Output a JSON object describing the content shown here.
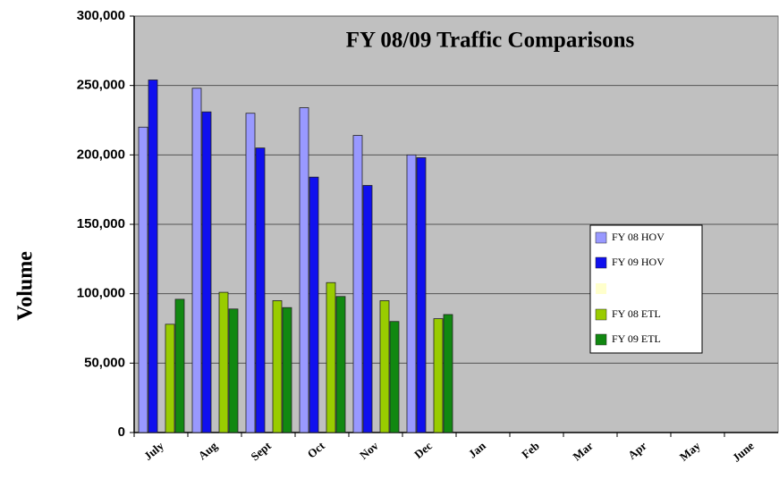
{
  "chart_data": {
    "type": "bar",
    "title": "FY 08/09 Traffic Comparisons",
    "y_label": "Volume",
    "categories": [
      "July",
      "Aug",
      "Sept",
      "Oct",
      "Nov",
      "Dec",
      "Jan",
      "Feb",
      "Mar",
      "Apr",
      "May",
      "June"
    ],
    "series": [
      {
        "name": "FY 08 HOV",
        "color": "#9999ff",
        "values": [
          220000,
          248000,
          230000,
          234000,
          214000,
          200000,
          null,
          null,
          null,
          null,
          null,
          null
        ]
      },
      {
        "name": "FY 09 HOV",
        "color": "#1010ee",
        "values": [
          254000,
          231000,
          205000,
          184000,
          178000,
          198000,
          null,
          null,
          null,
          null,
          null,
          null
        ]
      },
      {
        "name": "FY 08 ETL",
        "color": "#99cc00",
        "values": [
          78000,
          101000,
          95000,
          108000,
          95000,
          82000,
          null,
          null,
          null,
          null,
          null,
          null
        ]
      },
      {
        "name": "FY 09 ETL",
        "color": "#118811",
        "values": [
          96000,
          89000,
          90000,
          98000,
          80000,
          85000,
          null,
          null,
          null,
          null,
          null,
          null
        ]
      }
    ],
    "ylim": [
      0,
      300000
    ],
    "yticks": [
      {
        "value": 0,
        "label": "0"
      },
      {
        "value": 50000,
        "label": "50,000"
      },
      {
        "value": 100000,
        "label": "100,000"
      },
      {
        "value": 150000,
        "label": "150,000"
      },
      {
        "value": 200000,
        "label": "200,000"
      },
      {
        "value": 250000,
        "label": "250,000"
      },
      {
        "value": 300000,
        "label": "300,000"
      }
    ],
    "grid": true,
    "legend": "right",
    "background": "#c0c0c0"
  }
}
